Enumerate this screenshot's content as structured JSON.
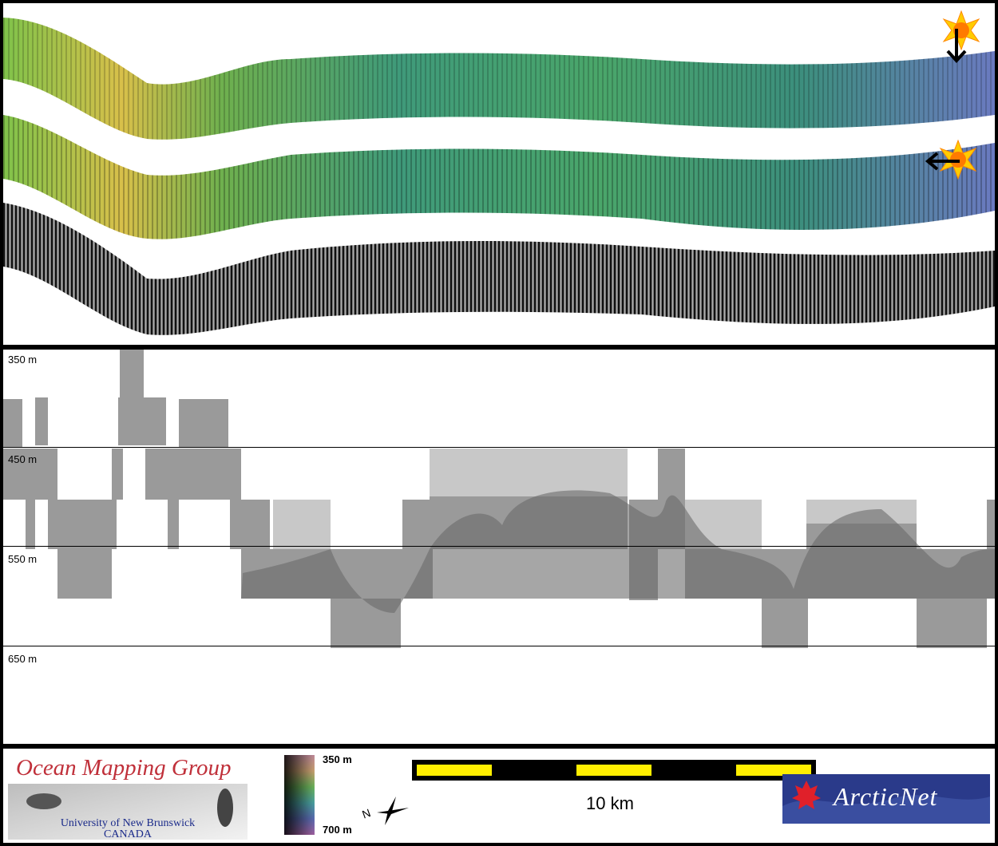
{
  "profile": {
    "depth_labels": [
      "350 m",
      "450 m",
      "550 m",
      "650 m"
    ]
  },
  "legend": {
    "group_title": "Ocean Mapping Group",
    "university": "University of New Brunswick",
    "country": "CANADA",
    "colorbar_top": "350 m",
    "colorbar_bottom": "700 m",
    "scale_label": "10 km",
    "north_letter": "N",
    "arcticnet_logo_text": "ArcticNet"
  },
  "colors": {
    "accent_scale": "#ffee00",
    "omg_title": "#c0303a",
    "arctic_bg": "#2a3a8a"
  },
  "icons": [
    "sun-icon",
    "arrow-down-icon",
    "arrow-left-icon",
    "north-arrow-icon",
    "maple-leaf-icon"
  ]
}
